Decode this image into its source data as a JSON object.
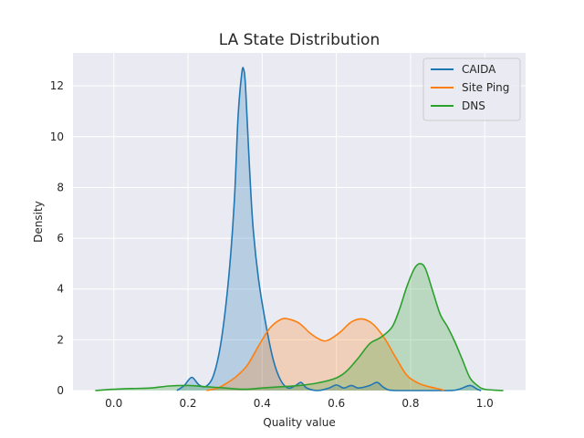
{
  "chart_data": {
    "type": "area",
    "title": "LA State Distribution",
    "xlabel": "Quality value",
    "ylabel": "Density",
    "xlim": [
      -0.11,
      1.11
    ],
    "ylim": [
      0,
      13.3
    ],
    "xticks": [
      "0.0",
      "0.2",
      "0.4",
      "0.6",
      "0.8",
      "1.0"
    ],
    "yticks": [
      "0",
      "2",
      "4",
      "6",
      "8",
      "10",
      "12"
    ],
    "grid": true,
    "legend_position": "top-right",
    "background": "#eaeaf2",
    "series": [
      {
        "name": "CAIDA",
        "color": "#1f77b4",
        "points": [
          [
            0.17,
            0.0
          ],
          [
            0.19,
            0.2
          ],
          [
            0.21,
            0.52
          ],
          [
            0.23,
            0.22
          ],
          [
            0.25,
            0.18
          ],
          [
            0.27,
            0.65
          ],
          [
            0.29,
            2.0
          ],
          [
            0.31,
            4.5
          ],
          [
            0.325,
            7.5
          ],
          [
            0.335,
            10.8
          ],
          [
            0.345,
            12.5
          ],
          [
            0.35,
            12.65
          ],
          [
            0.355,
            12.0
          ],
          [
            0.365,
            9.0
          ],
          [
            0.375,
            6.5
          ],
          [
            0.39,
            4.4
          ],
          [
            0.41,
            2.6
          ],
          [
            0.43,
            1.2
          ],
          [
            0.45,
            0.4
          ],
          [
            0.47,
            0.1
          ],
          [
            0.49,
            0.2
          ],
          [
            0.505,
            0.32
          ],
          [
            0.52,
            0.1
          ],
          [
            0.55,
            0.0
          ],
          [
            0.58,
            0.1
          ],
          [
            0.6,
            0.22
          ],
          [
            0.62,
            0.1
          ],
          [
            0.64,
            0.2
          ],
          [
            0.66,
            0.1
          ],
          [
            0.69,
            0.2
          ],
          [
            0.71,
            0.32
          ],
          [
            0.73,
            0.1
          ],
          [
            0.76,
            0.0
          ],
          [
            0.9,
            0.0
          ],
          [
            0.93,
            0.05
          ],
          [
            0.96,
            0.2
          ],
          [
            0.98,
            0.05
          ],
          [
            0.99,
            0.0
          ]
        ]
      },
      {
        "name": "Site Ping",
        "color": "#ff7f0e",
        "points": [
          [
            0.25,
            0.0
          ],
          [
            0.28,
            0.1
          ],
          [
            0.3,
            0.25
          ],
          [
            0.33,
            0.55
          ],
          [
            0.36,
            1.0
          ],
          [
            0.39,
            1.75
          ],
          [
            0.42,
            2.45
          ],
          [
            0.45,
            2.8
          ],
          [
            0.47,
            2.82
          ],
          [
            0.5,
            2.65
          ],
          [
            0.53,
            2.25
          ],
          [
            0.56,
            1.98
          ],
          [
            0.58,
            2.0
          ],
          [
            0.61,
            2.3
          ],
          [
            0.64,
            2.7
          ],
          [
            0.67,
            2.82
          ],
          [
            0.7,
            2.6
          ],
          [
            0.73,
            2.05
          ],
          [
            0.76,
            1.3
          ],
          [
            0.79,
            0.6
          ],
          [
            0.82,
            0.3
          ],
          [
            0.85,
            0.15
          ],
          [
            0.88,
            0.05
          ],
          [
            0.89,
            0.0
          ]
        ]
      },
      {
        "name": "DNS",
        "color": "#2ca02c",
        "points": [
          [
            -0.05,
            0.0
          ],
          [
            0.0,
            0.05
          ],
          [
            0.05,
            0.08
          ],
          [
            0.1,
            0.1
          ],
          [
            0.15,
            0.18
          ],
          [
            0.2,
            0.2
          ],
          [
            0.25,
            0.15
          ],
          [
            0.3,
            0.1
          ],
          [
            0.35,
            0.05
          ],
          [
            0.4,
            0.1
          ],
          [
            0.45,
            0.15
          ],
          [
            0.5,
            0.2
          ],
          [
            0.55,
            0.3
          ],
          [
            0.6,
            0.5
          ],
          [
            0.63,
            0.8
          ],
          [
            0.66,
            1.3
          ],
          [
            0.69,
            1.85
          ],
          [
            0.72,
            2.1
          ],
          [
            0.75,
            2.5
          ],
          [
            0.77,
            3.2
          ],
          [
            0.79,
            4.1
          ],
          [
            0.81,
            4.8
          ],
          [
            0.825,
            5.0
          ],
          [
            0.84,
            4.8
          ],
          [
            0.86,
            3.9
          ],
          [
            0.88,
            3.0
          ],
          [
            0.9,
            2.5
          ],
          [
            0.92,
            1.9
          ],
          [
            0.94,
            1.2
          ],
          [
            0.96,
            0.5
          ],
          [
            0.98,
            0.2
          ],
          [
            1.0,
            0.05
          ],
          [
            1.05,
            0.0
          ]
        ]
      }
    ]
  }
}
